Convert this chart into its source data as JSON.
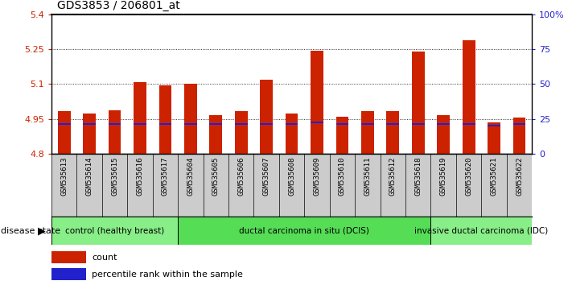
{
  "title": "GDS3853 / 206801_at",
  "samples": [
    "GSM535613",
    "GSM535614",
    "GSM535615",
    "GSM535616",
    "GSM535617",
    "GSM535604",
    "GSM535605",
    "GSM535606",
    "GSM535607",
    "GSM535608",
    "GSM535609",
    "GSM535610",
    "GSM535611",
    "GSM535612",
    "GSM535618",
    "GSM535619",
    "GSM535620",
    "GSM535621",
    "GSM535622"
  ],
  "counts": [
    4.985,
    4.975,
    4.986,
    5.107,
    5.095,
    5.1,
    4.968,
    4.984,
    5.12,
    4.972,
    5.245,
    4.958,
    4.984,
    4.984,
    5.24,
    4.968,
    5.29,
    4.935,
    4.957
  ],
  "percentile_rank": [
    4.928,
    4.927,
    4.928,
    4.929,
    4.929,
    4.928,
    4.928,
    4.928,
    4.928,
    4.928,
    4.936,
    4.928,
    4.928,
    4.928,
    4.928,
    4.928,
    4.928,
    4.922,
    4.928
  ],
  "ylim_left": [
    4.8,
    5.4
  ],
  "ylim_right": [
    0,
    100
  ],
  "yticks_left": [
    4.8,
    4.95,
    5.1,
    5.25,
    5.4
  ],
  "ytick_labels_left": [
    "4.8",
    "4.95",
    "5.1",
    "5.25",
    "5.4"
  ],
  "yticks_right": [
    0,
    25,
    50,
    75,
    100
  ],
  "ytick_labels_right": [
    "0",
    "25",
    "50",
    "75",
    "100%"
  ],
  "bar_color": "#cc2200",
  "percentile_color": "#2222cc",
  "bar_width": 0.5,
  "groups": [
    {
      "label": "control (healthy breast)",
      "start": 0,
      "end": 5,
      "color": "#88ee88"
    },
    {
      "label": "ductal carcinoma in situ (DCIS)",
      "start": 5,
      "end": 15,
      "color": "#55dd55"
    },
    {
      "label": "invasive ductal carcinoma (IDC)",
      "start": 15,
      "end": 19,
      "color": "#88ee88"
    }
  ],
  "disease_state_label": "disease state",
  "legend_count_label": "count",
  "legend_percentile_label": "percentile rank within the sample",
  "bg_color": "#ffffff",
  "xticklabel_bg": "#cccccc",
  "ylabel_left_color": "#cc2200",
  "ylabel_right_color": "#2222cc"
}
